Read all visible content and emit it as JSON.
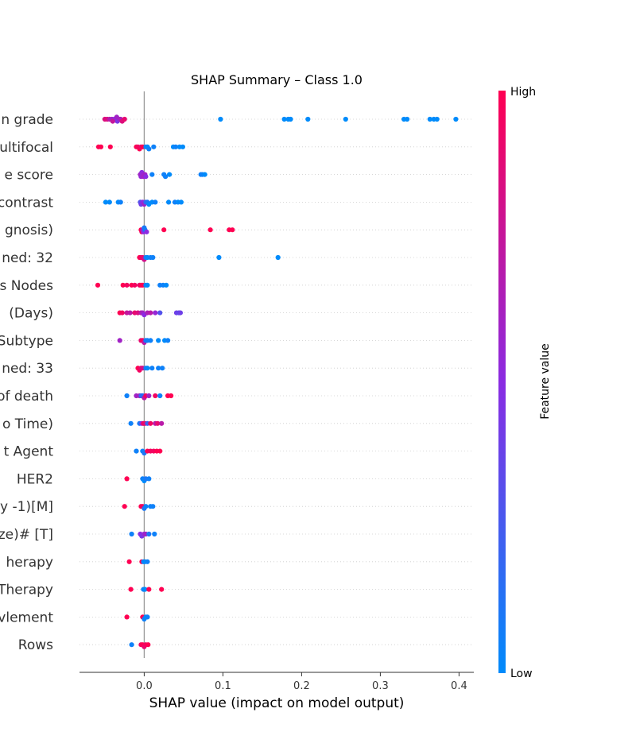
{
  "chart_data": {
    "type": "scatter",
    "title": "SHAP Summary – Class 1.0",
    "xlabel": "SHAP value (impact on model output)",
    "xlim": [
      -0.082,
      0.418
    ],
    "xticks": [
      0.0,
      0.1,
      0.2,
      0.3,
      0.4
    ],
    "xtick_labels": [
      "0.0",
      "0.1",
      "0.2",
      "0.3",
      "0.4"
    ],
    "colorbar": {
      "label": "Feature value",
      "high": "High",
      "low": "Low",
      "high_color": "#ff0052",
      "mid_color": "#8a2be2",
      "low_color": "#008bfb"
    },
    "features": [
      {
        "label": "n grade",
        "points": [
          [
            -0.05,
            0.85
          ],
          [
            -0.047,
            0.85
          ],
          [
            -0.044,
            0.7
          ],
          [
            -0.041,
            0.6
          ],
          [
            -0.038,
            0.55
          ],
          [
            -0.036,
            0.5
          ],
          [
            -0.034,
            0.45
          ],
          [
            -0.032,
            0.55
          ],
          [
            -0.03,
            0.65
          ],
          [
            -0.028,
            0.85
          ],
          [
            -0.025,
            0.9
          ],
          [
            -0.04,
            0.75
          ],
          [
            -0.035,
            0.6
          ],
          [
            0.097,
            0.0
          ],
          [
            0.178,
            0.0
          ],
          [
            0.183,
            0.0
          ],
          [
            0.186,
            0.0
          ],
          [
            0.208,
            0.0
          ],
          [
            0.256,
            0.0
          ],
          [
            0.33,
            0.0
          ],
          [
            0.334,
            0.0
          ],
          [
            0.363,
            0.0
          ],
          [
            0.368,
            0.0
          ],
          [
            0.372,
            0.0
          ],
          [
            0.396,
            0.0
          ]
        ]
      },
      {
        "label": "ultifocal",
        "points": [
          [
            -0.058,
            1.0
          ],
          [
            -0.055,
            1.0
          ],
          [
            -0.043,
            1.0
          ],
          [
            -0.01,
            1.0
          ],
          [
            -0.008,
            0.95
          ],
          [
            -0.006,
            1.0
          ],
          [
            -0.004,
            0.9
          ],
          [
            -0.002,
            1.0
          ],
          [
            0.002,
            0.05
          ],
          [
            0.004,
            0.0
          ],
          [
            0.006,
            0.05
          ],
          [
            0.012,
            0.05
          ],
          [
            0.037,
            0.0
          ],
          [
            0.04,
            0.05
          ],
          [
            0.045,
            0.0
          ],
          [
            0.049,
            0.0
          ]
        ]
      },
      {
        "label": "e score",
        "points": [
          [
            -0.005,
            0.6
          ],
          [
            -0.004,
            0.55
          ],
          [
            -0.003,
            0.5
          ],
          [
            -0.002,
            0.55
          ],
          [
            -0.001,
            0.6
          ],
          [
            0.001,
            0.6
          ],
          [
            0.002,
            0.5
          ],
          [
            0.01,
            0.05
          ],
          [
            0.025,
            0.05
          ],
          [
            0.027,
            0.05
          ],
          [
            0.032,
            0.0
          ],
          [
            0.072,
            0.05
          ],
          [
            0.074,
            0.05
          ],
          [
            0.077,
            0.0
          ]
        ]
      },
      {
        "label": "contrast",
        "points": [
          [
            -0.049,
            0.0
          ],
          [
            -0.044,
            0.0
          ],
          [
            -0.033,
            0.0
          ],
          [
            -0.03,
            0.05
          ],
          [
            -0.005,
            0.3
          ],
          [
            -0.004,
            0.4
          ],
          [
            -0.002,
            0.5
          ],
          [
            0.0,
            0.6
          ],
          [
            0.002,
            0.2
          ],
          [
            0.004,
            0.1
          ],
          [
            0.006,
            0.0
          ],
          [
            0.01,
            0.0
          ],
          [
            0.014,
            0.05
          ],
          [
            0.031,
            0.0
          ],
          [
            0.039,
            0.05
          ],
          [
            0.043,
            0.0
          ],
          [
            0.047,
            0.0
          ]
        ]
      },
      {
        "label": "gnosis)",
        "points": [
          [
            -0.004,
            1.0
          ],
          [
            -0.003,
            0.95
          ],
          [
            -0.002,
            0.6
          ],
          [
            -0.001,
            0.5
          ],
          [
            0.0,
            0.1
          ],
          [
            0.001,
            0.05
          ],
          [
            0.003,
            0.5
          ],
          [
            0.025,
            1.0
          ],
          [
            0.084,
            1.0
          ],
          [
            0.108,
            1.0
          ],
          [
            0.112,
            1.0
          ]
        ]
      },
      {
        "label": "ned: 32",
        "points": [
          [
            -0.006,
            1.0
          ],
          [
            -0.004,
            0.95
          ],
          [
            -0.002,
            0.9
          ],
          [
            0.0,
            0.8
          ],
          [
            0.002,
            0.1
          ],
          [
            0.004,
            0.0
          ],
          [
            0.008,
            0.05
          ],
          [
            0.011,
            0.05
          ],
          [
            0.095,
            0.0
          ],
          [
            0.17,
            0.0
          ]
        ]
      },
      {
        "label": "s Nodes",
        "points": [
          [
            -0.059,
            1.0
          ],
          [
            -0.027,
            1.0
          ],
          [
            -0.022,
            0.95
          ],
          [
            -0.016,
            1.0
          ],
          [
            -0.012,
            0.95
          ],
          [
            -0.006,
            0.9
          ],
          [
            -0.004,
            1.0
          ],
          [
            -0.002,
            1.0
          ],
          [
            0.002,
            0.05
          ],
          [
            0.004,
            0.0
          ],
          [
            0.02,
            0.05
          ],
          [
            0.024,
            0.05
          ],
          [
            0.028,
            0.0
          ]
        ]
      },
      {
        "label": "(Days)",
        "points": [
          [
            -0.031,
            1.0
          ],
          [
            -0.028,
            0.95
          ],
          [
            -0.022,
            0.75
          ],
          [
            -0.018,
            0.7
          ],
          [
            -0.012,
            0.9
          ],
          [
            -0.008,
            0.85
          ],
          [
            -0.004,
            0.7
          ],
          [
            -0.002,
            0.6
          ],
          [
            0.0,
            0.5
          ],
          [
            0.004,
            0.65
          ],
          [
            0.008,
            0.7
          ],
          [
            0.014,
            0.55
          ],
          [
            0.02,
            0.3
          ],
          [
            0.041,
            0.4
          ],
          [
            0.044,
            0.35
          ],
          [
            0.046,
            0.4
          ]
        ]
      },
      {
        "label": "Subtype",
        "points": [
          [
            -0.031,
            0.6
          ],
          [
            -0.004,
            0.9
          ],
          [
            -0.002,
            0.95
          ],
          [
            0.0,
            0.7
          ],
          [
            0.002,
            0.1
          ],
          [
            0.004,
            0.05
          ],
          [
            0.008,
            0.05
          ],
          [
            0.018,
            0.0
          ],
          [
            0.026,
            0.0
          ],
          [
            0.03,
            0.05
          ]
        ]
      },
      {
        "label": "ned: 33",
        "points": [
          [
            -0.008,
            1.0
          ],
          [
            -0.006,
            0.95
          ],
          [
            -0.004,
            0.9
          ],
          [
            -0.002,
            0.8
          ],
          [
            0.002,
            0.1
          ],
          [
            0.004,
            0.0
          ],
          [
            0.01,
            0.05
          ],
          [
            0.018,
            0.05
          ],
          [
            0.023,
            0.05
          ]
        ]
      },
      {
        "label": "of death",
        "points": [
          [
            -0.022,
            0.05
          ],
          [
            -0.01,
            0.6
          ],
          [
            -0.006,
            0.65
          ],
          [
            -0.004,
            0.2
          ],
          [
            -0.002,
            0.15
          ],
          [
            0.0,
            0.7
          ],
          [
            0.002,
            0.95
          ],
          [
            0.006,
            0.6
          ],
          [
            0.014,
            0.95
          ],
          [
            0.02,
            0.05
          ],
          [
            0.03,
            1.0
          ],
          [
            0.034,
            1.0
          ]
        ]
      },
      {
        "label": "o Time)",
        "points": [
          [
            -0.017,
            0.05
          ],
          [
            -0.006,
            0.1
          ],
          [
            -0.003,
            0.5
          ],
          [
            -0.001,
            0.95
          ],
          [
            0.001,
            0.9
          ],
          [
            0.004,
            0.2
          ],
          [
            0.008,
            0.95
          ],
          [
            0.014,
            0.7
          ],
          [
            0.017,
            0.9
          ],
          [
            0.022,
            0.7
          ]
        ]
      },
      {
        "label": "t Agent",
        "points": [
          [
            -0.01,
            0.05
          ],
          [
            -0.002,
            0.05
          ],
          [
            0.0,
            0.1
          ],
          [
            0.004,
            1.0
          ],
          [
            0.008,
            0.95
          ],
          [
            0.012,
            0.95
          ],
          [
            0.016,
            1.0
          ],
          [
            0.02,
            1.0
          ]
        ]
      },
      {
        "label": "HER2",
        "points": [
          [
            -0.022,
            1.0
          ],
          [
            -0.002,
            0.05
          ],
          [
            0.0,
            0.0
          ],
          [
            0.002,
            0.1
          ],
          [
            0.006,
            0.05
          ]
        ]
      },
      {
        "label": "y -1)[M]",
        "points": [
          [
            -0.025,
            1.0
          ],
          [
            -0.004,
            1.0
          ],
          [
            -0.002,
            0.95
          ],
          [
            0.0,
            0.1
          ],
          [
            0.002,
            0.05
          ],
          [
            0.008,
            0.05
          ],
          [
            0.011,
            0.05
          ]
        ]
      },
      {
        "label": "ze)# [T]",
        "points": [
          [
            -0.016,
            0.05
          ],
          [
            -0.005,
            0.5
          ],
          [
            -0.003,
            0.45
          ],
          [
            0.0,
            0.55
          ],
          [
            0.002,
            0.6
          ],
          [
            0.006,
            0.1
          ],
          [
            0.013,
            0.05
          ]
        ]
      },
      {
        "label": "herapy",
        "points": [
          [
            -0.019,
            1.0
          ],
          [
            -0.003,
            1.0
          ],
          [
            -0.001,
            0.05
          ],
          [
            0.001,
            0.0
          ],
          [
            0.004,
            0.05
          ]
        ]
      },
      {
        "label": "Therapy",
        "points": [
          [
            -0.017,
            1.0
          ],
          [
            -0.001,
            0.05
          ],
          [
            0.001,
            0.0
          ],
          [
            0.006,
            1.0
          ],
          [
            0.022,
            1.0
          ]
        ]
      },
      {
        "label": "vlement",
        "points": [
          [
            -0.022,
            1.0
          ],
          [
            -0.002,
            1.0
          ],
          [
            0.0,
            0.05
          ],
          [
            0.002,
            0.0
          ],
          [
            0.004,
            0.05
          ]
        ]
      },
      {
        "label": "Rows",
        "points": [
          [
            -0.016,
            0.05
          ],
          [
            -0.004,
            0.95
          ],
          [
            -0.002,
            1.0
          ],
          [
            0.0,
            0.9
          ],
          [
            0.002,
            0.95
          ],
          [
            0.005,
            1.0
          ]
        ]
      }
    ]
  }
}
